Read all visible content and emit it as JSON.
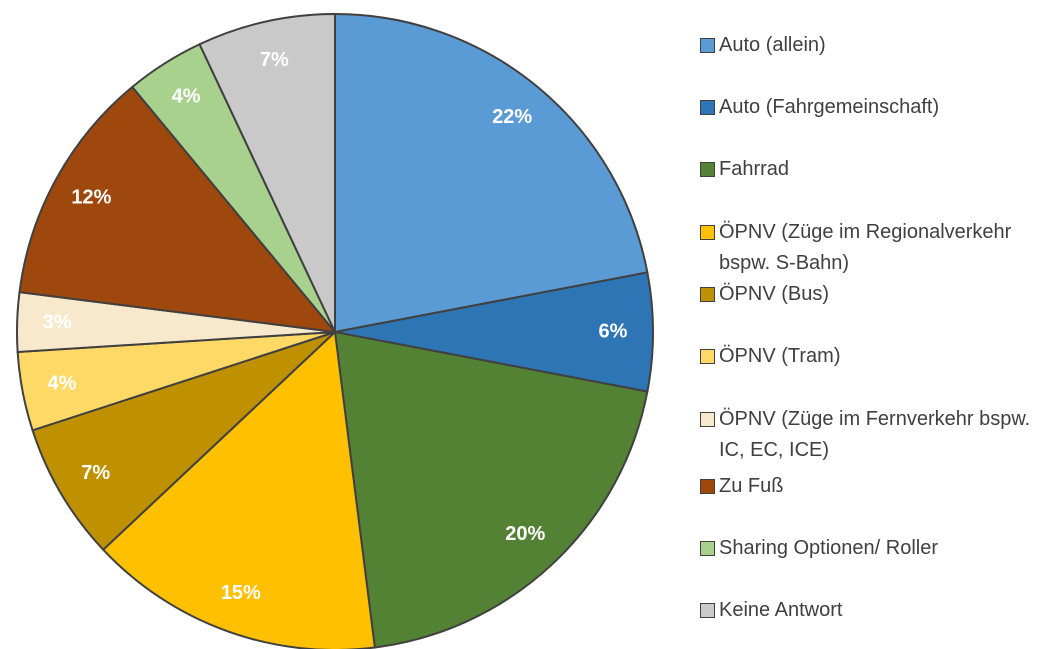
{
  "chart_data": {
    "type": "pie",
    "categories": [
      "Auto (allein)",
      "Auto (Fahrgemeinschaft)",
      "Fahrrad",
      "ÖPNV (Züge im Regionalverkehr bspw. S-Bahn)",
      "ÖPNV (Bus)",
      "ÖPNV (Tram)",
      "ÖPNV (Züge im Fernverkehr bspw. IC, EC, ICE)",
      "Zu Fuß",
      "Sharing Optionen/ Roller",
      "Keine Antwort"
    ],
    "values": [
      22,
      6,
      20,
      15,
      7,
      4,
      3,
      12,
      4,
      7
    ],
    "value_labels": [
      "22%",
      "6%",
      "20%",
      "15%",
      "7%",
      "4%",
      "3%",
      "12%",
      "4%",
      "7%"
    ],
    "colors": [
      "#5b9bd5",
      "#2e75b6",
      "#548235",
      "#ffc000",
      "#bf9000",
      "#ffd966",
      "#f8e9cc",
      "#9e480e",
      "#a9d18e",
      "#c9c9c9"
    ],
    "legend": "right"
  }
}
